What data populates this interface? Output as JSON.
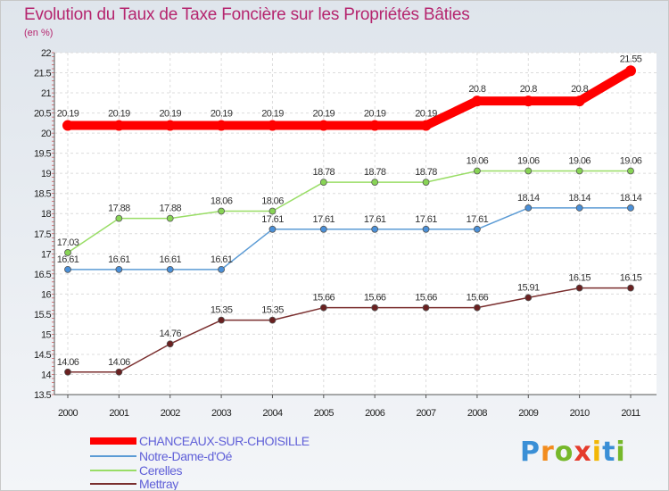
{
  "chart_data": {
    "type": "line",
    "title": "Evolution du Taux de Taxe Foncière sur les Propriétés Bâties",
    "subtitle": "(en %)",
    "x": [
      "2000",
      "2001",
      "2002",
      "2003",
      "2004",
      "2005",
      "2006",
      "2007",
      "2008",
      "2009",
      "2010",
      "2011"
    ],
    "yticks": [
      "13.5",
      "14",
      "14.5",
      "15",
      "15.5",
      "16",
      "16.5",
      "17",
      "17.5",
      "18",
      "18.5",
      "19",
      "19.5",
      "20",
      "20.5",
      "21",
      "21.5",
      "22"
    ],
    "ylim": [
      13.5,
      22
    ],
    "grid": true,
    "legend_position": "bottom-left",
    "series": [
      {
        "name": "CHANCEAUX-SUR-CHOISILLE",
        "color": "#ff0000",
        "values": [
          20.19,
          20.19,
          20.19,
          20.19,
          20.19,
          20.19,
          20.19,
          20.19,
          20.8,
          20.8,
          20.8,
          21.55
        ],
        "labels": [
          "20.19",
          "20.19",
          "20.19",
          "20.19",
          "20.19",
          "20.19",
          "20.19",
          "20.19",
          "20.8",
          "20.8",
          "20.8",
          "21.55"
        ]
      },
      {
        "name": "Notre-Dame-d'Oé",
        "color": "#5b9bd5",
        "values": [
          16.61,
          16.61,
          16.61,
          16.61,
          17.61,
          17.61,
          17.61,
          17.61,
          17.61,
          18.14,
          18.14,
          18.14
        ],
        "labels": [
          "16.61",
          "16.61",
          "16.61",
          "16.61",
          "17.61",
          "17.61",
          "17.61",
          "17.61",
          "17.61",
          "18.14",
          "18.14",
          "18.14"
        ]
      },
      {
        "name": "Cerelles",
        "color": "#99dd66",
        "values": [
          17.03,
          17.88,
          17.88,
          18.06,
          18.06,
          18.78,
          18.78,
          18.78,
          19.06,
          19.06,
          19.06,
          19.06
        ],
        "labels": [
          "17.03",
          "17.88",
          "17.88",
          "18.06",
          "18.06",
          "18.78",
          "18.78",
          "18.78",
          "19.06",
          "19.06",
          "19.06",
          "19.06"
        ]
      },
      {
        "name": "Mettray",
        "color": "#7a2e2e",
        "values": [
          14.06,
          14.06,
          14.76,
          15.35,
          15.35,
          15.66,
          15.66,
          15.66,
          15.66,
          15.91,
          16.15,
          16.15
        ],
        "labels": [
          "14.06",
          "14.06",
          "14.76",
          "15.35",
          "15.35",
          "15.66",
          "15.66",
          "15.66",
          "15.66",
          "15.91",
          "16.15",
          "16.15"
        ]
      }
    ]
  },
  "logo": {
    "text": "Proxiti",
    "letters": [
      "P",
      "r",
      "o",
      "x",
      "i",
      "t",
      "i"
    ],
    "colors": [
      "#3a8fd6",
      "#f28c1e",
      "#76b82a",
      "#e53b2c",
      "#f2b705",
      "#3a8fd6",
      "#76b82a"
    ]
  }
}
